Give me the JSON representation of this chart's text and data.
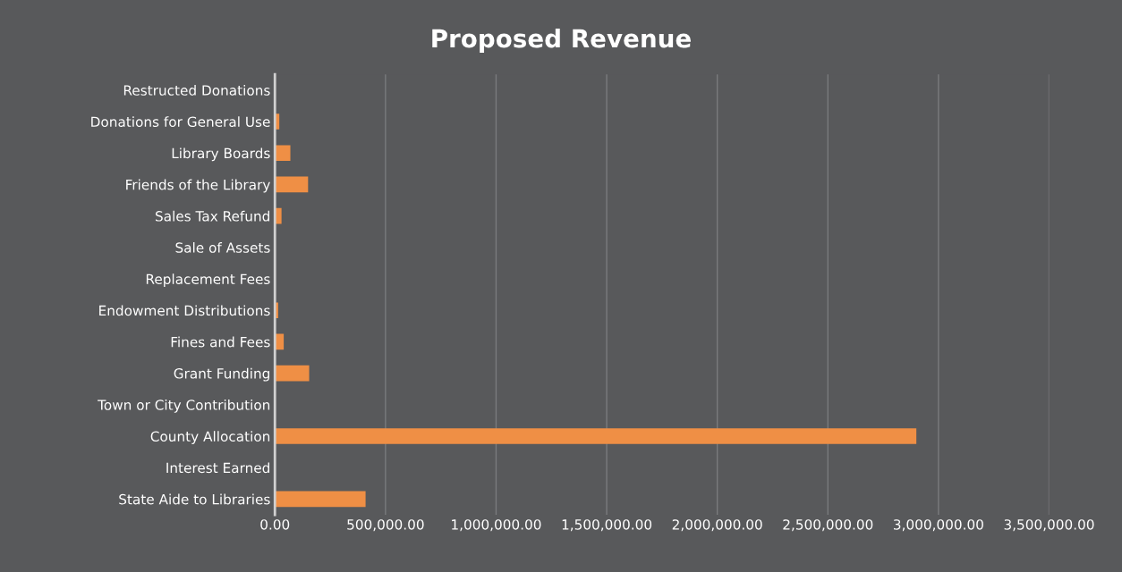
{
  "chart_data": {
    "type": "bar",
    "orientation": "horizontal",
    "title": "Proposed Revenue",
    "categories": [
      "Restructed Donations",
      "Donations for General Use",
      "Library Boards",
      "Friends of the Library",
      "Sales Tax Refund",
      "Sale of Assets",
      "Replacement Fees",
      "Endowment Distributions",
      "Fines and Fees",
      "Grant Funding",
      "Town or City Contribution",
      "County Allocation",
      "Interest Earned",
      "State Aide to Libraries"
    ],
    "values": [
      0,
      20000,
      70000,
      150000,
      30000,
      0,
      0,
      15000,
      40000,
      155000,
      0,
      2900000,
      0,
      410000
    ],
    "color": "#ef8f45",
    "xlim": [
      0,
      3500000
    ],
    "xticks": [
      {
        "value": 0,
        "label": "0.00"
      },
      {
        "value": 500000,
        "label": "500,000.00"
      },
      {
        "value": 1000000,
        "label": "1,000,000.00"
      },
      {
        "value": 1500000,
        "label": "1,500,000.00"
      },
      {
        "value": 2000000,
        "label": "2,000,000.00"
      },
      {
        "value": 2500000,
        "label": "2,500,000.00"
      },
      {
        "value": 3000000,
        "label": "3,000,000.00"
      },
      {
        "value": 3500000,
        "label": "3,500,000.00"
      }
    ],
    "grid": "x"
  }
}
